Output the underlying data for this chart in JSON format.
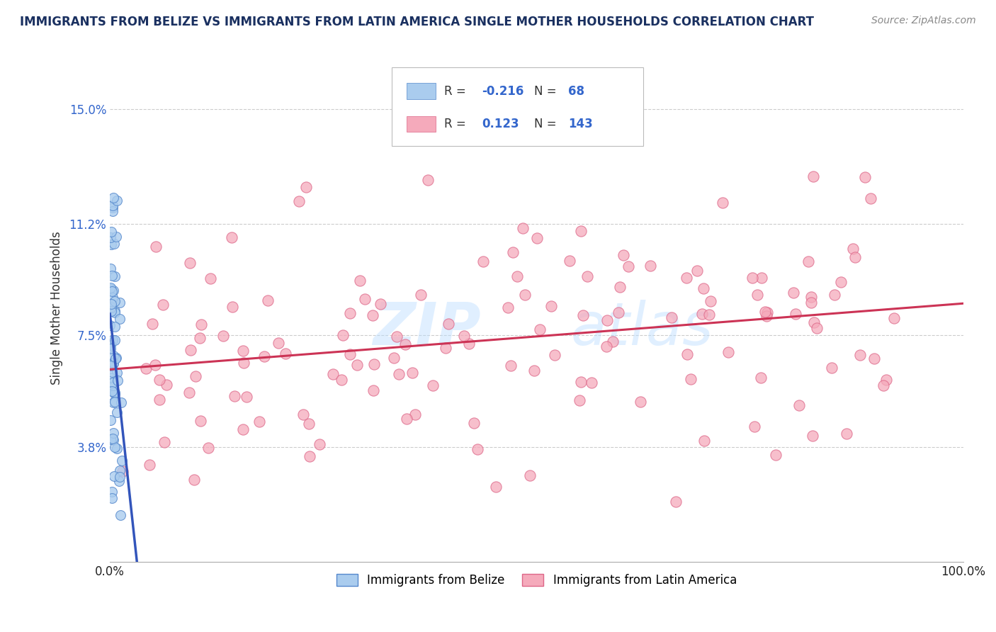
{
  "title": "IMMIGRANTS FROM BELIZE VS IMMIGRANTS FROM LATIN AMERICA SINGLE MOTHER HOUSEHOLDS CORRELATION CHART",
  "source_text": "Source: ZipAtlas.com",
  "ylabel": "Single Mother Households",
  "xlim": [
    0.0,
    1.0
  ],
  "ylim": [
    0.0,
    0.168
  ],
  "yticks": [
    0.038,
    0.075,
    0.112,
    0.15
  ],
  "ytick_labels": [
    "3.8%",
    "7.5%",
    "11.2%",
    "15.0%"
  ],
  "xtick_labels": [
    "0.0%",
    "100.0%"
  ],
  "legend_R1": "-0.216",
  "legend_N1": "68",
  "legend_R2": "0.123",
  "legend_N2": "143",
  "belize_color": "#aaccee",
  "latin_color": "#f5aabb",
  "belize_edge_color": "#5588cc",
  "latin_edge_color": "#dd6688",
  "belize_line_color": "#3355bb",
  "latin_line_color": "#cc3355",
  "background_color": "#ffffff",
  "grid_color": "#cccccc",
  "title_color": "#1a3060",
  "watermark_color": "#aaccee"
}
